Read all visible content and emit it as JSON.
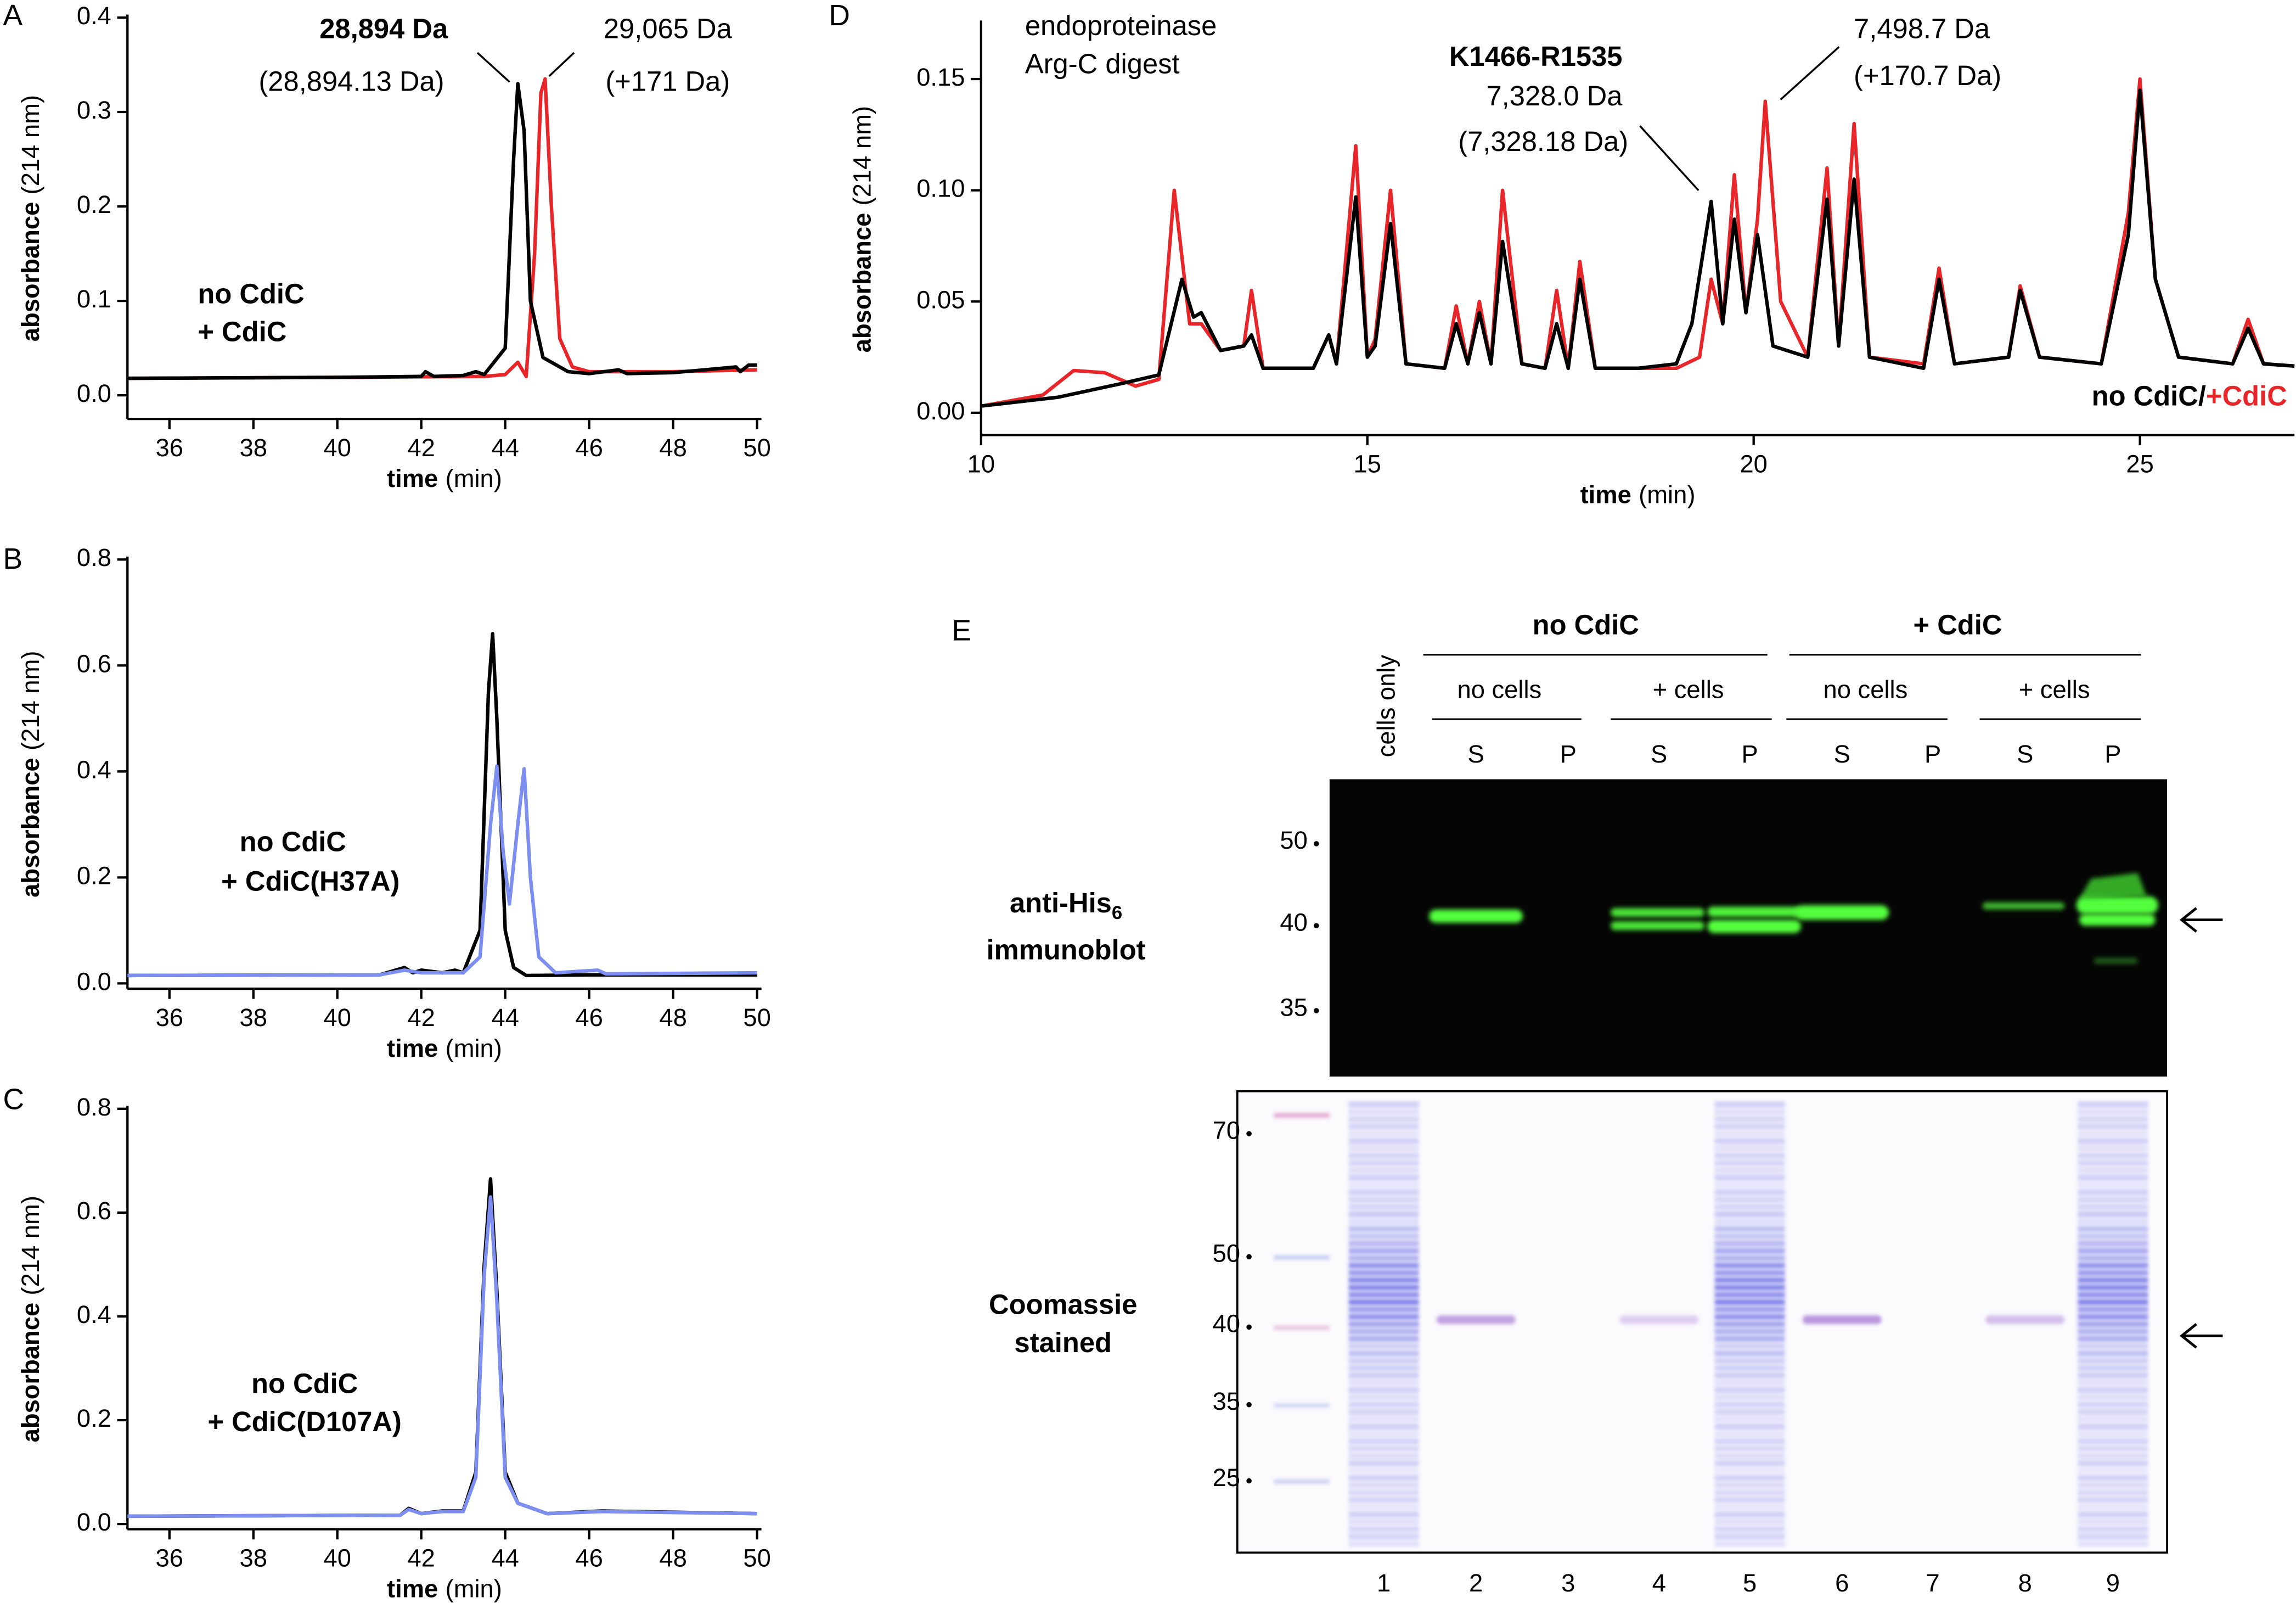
{
  "chart_data": [
    {
      "type": "line",
      "panel_label": "A",
      "ylabel": "absorbance",
      "ylabel_unit": "(214 nm)",
      "xlabel": "time",
      "xlabel_unit": "(min)",
      "xlim": [
        35,
        50
      ],
      "xticks": [
        36,
        38,
        40,
        42,
        44,
        46,
        48,
        50
      ],
      "ylim": [
        -0.025,
        0.4
      ],
      "yticks": [
        {
          "value": 0,
          "label": "0.0"
        },
        0.1,
        0.2,
        0.3,
        0.4
      ],
      "series": [
        {
          "name": "no CdiC",
          "color": "#000000",
          "x": [
            35,
            40,
            42,
            42.1,
            42.3,
            43,
            43.3,
            43.5,
            44.0,
            44.2,
            44.3,
            44.45,
            44.6,
            44.9,
            45.5,
            46,
            46.7,
            46.9,
            48,
            49.5,
            49.6,
            49.8,
            50
          ],
          "values": [
            0.018,
            0.019,
            0.02,
            0.025,
            0.02,
            0.021,
            0.025,
            0.022,
            0.05,
            0.25,
            0.33,
            0.28,
            0.1,
            0.04,
            0.025,
            0.023,
            0.027,
            0.023,
            0.024,
            0.03,
            0.025,
            0.032,
            0.032
          ]
        },
        {
          "name": "+ CdiC",
          "color": "#e8262a",
          "x": [
            35,
            40,
            43.5,
            44.0,
            44.3,
            44.5,
            44.7,
            44.85,
            44.95,
            45.1,
            45.3,
            45.6,
            46,
            48,
            50
          ],
          "values": [
            0.018,
            0.019,
            0.02,
            0.022,
            0.035,
            0.02,
            0.15,
            0.32,
            0.335,
            0.2,
            0.06,
            0.03,
            0.025,
            0.025,
            0.027
          ]
        }
      ],
      "annotations": [
        "28,894 Da",
        "(28,894.13 Da)",
        "29,065 Da",
        "(+171 Da)"
      ]
    },
    {
      "type": "line",
      "panel_label": "B",
      "ylabel": "absorbance",
      "ylabel_unit": "(214 nm)",
      "xlabel": "time",
      "xlabel_unit": "(min)",
      "xlim": [
        35,
        50
      ],
      "xticks": [
        36,
        38,
        40,
        42,
        44,
        46,
        48,
        50
      ],
      "ylim": [
        -0.01,
        0.8
      ],
      "yticks": [
        {
          "value": 0,
          "label": "0.0"
        },
        0.2,
        0.4,
        0.6,
        0.8
      ],
      "series": [
        {
          "name": "no CdiC",
          "color": "#000000",
          "x": [
            35,
            41,
            41.6,
            41.8,
            42,
            42.5,
            42.8,
            43,
            43.4,
            43.6,
            43.7,
            43.8,
            44,
            44.2,
            44.5,
            46,
            50
          ],
          "values": [
            0.015,
            0.016,
            0.03,
            0.02,
            0.025,
            0.02,
            0.025,
            0.02,
            0.1,
            0.55,
            0.66,
            0.5,
            0.1,
            0.03,
            0.015,
            0.016,
            0.016
          ]
        },
        {
          "name": "+ CdiC(H37A)",
          "color": "#7c8ff0",
          "x": [
            35,
            41,
            41.6,
            42,
            43,
            43.4,
            43.65,
            43.8,
            43.95,
            44.1,
            44.3,
            44.45,
            44.6,
            44.8,
            45.2,
            46.2,
            46.4,
            50
          ],
          "values": [
            0.015,
            0.016,
            0.025,
            0.02,
            0.02,
            0.05,
            0.3,
            0.41,
            0.25,
            0.15,
            0.3,
            0.405,
            0.2,
            0.05,
            0.02,
            0.025,
            0.018,
            0.02
          ]
        }
      ]
    },
    {
      "type": "line",
      "panel_label": "C",
      "ylabel": "absorbance",
      "ylabel_unit": "(214 nm)",
      "xlabel": "time",
      "xlabel_unit": "(min)",
      "xlim": [
        35,
        50
      ],
      "xticks": [
        36,
        38,
        40,
        42,
        44,
        46,
        48,
        50
      ],
      "ylim": [
        -0.01,
        0.8
      ],
      "yticks": [
        {
          "value": 0,
          "label": "0.0"
        },
        0.2,
        0.4,
        0.6,
        0.8
      ],
      "series": [
        {
          "name": "no CdiC",
          "color": "#000000",
          "x": [
            35,
            41.5,
            41.7,
            42,
            42.5,
            43,
            43.3,
            43.5,
            43.65,
            43.8,
            44,
            44.3,
            45,
            46.3,
            50
          ],
          "values": [
            0.015,
            0.017,
            0.03,
            0.02,
            0.025,
            0.025,
            0.1,
            0.5,
            0.665,
            0.45,
            0.1,
            0.04,
            0.02,
            0.025,
            0.02
          ]
        },
        {
          "name": "+ CdiC(D107A)",
          "color": "#7c8ff0",
          "x": [
            35,
            41.5,
            41.7,
            42,
            42.5,
            43,
            43.3,
            43.5,
            43.65,
            43.8,
            44,
            44.3,
            45,
            46.3,
            50
          ],
          "values": [
            0.015,
            0.017,
            0.028,
            0.02,
            0.024,
            0.024,
            0.09,
            0.48,
            0.63,
            0.43,
            0.09,
            0.04,
            0.02,
            0.024,
            0.02
          ]
        }
      ]
    },
    {
      "type": "line",
      "panel_label": "D",
      "ylabel": "absorbance",
      "ylabel_unit": "(214 nm)",
      "xlabel": "time",
      "xlabel_unit": "(min)",
      "xlim": [
        10,
        27
      ],
      "xticks": [
        10,
        15,
        20,
        25
      ],
      "ylim": [
        -0.01,
        0.175
      ],
      "yticks": [
        {
          "value": 0,
          "label": "0.00"
        },
        0.05,
        {
          "value": 0.1,
          "label": "0.10"
        },
        0.15
      ],
      "series": [
        {
          "name": "no CdiC",
          "color": "#000000",
          "x": [
            10,
            11,
            11.8,
            12.3,
            12.6,
            12.75,
            12.85,
            13.1,
            13.4,
            13.5,
            13.65,
            14.3,
            14.5,
            14.6,
            14.85,
            15.0,
            15.1,
            15.3,
            15.5,
            16.0,
            16.15,
            16.3,
            16.45,
            16.6,
            16.75,
            17.0,
            17.3,
            17.45,
            17.6,
            17.75,
            17.95,
            18.5,
            19.0,
            19.2,
            19.45,
            19.6,
            19.75,
            19.9,
            20.05,
            20.25,
            20.7,
            20.95,
            21.1,
            21.3,
            21.5,
            22.2,
            22.4,
            22.6,
            23.3,
            23.45,
            23.7,
            24.5,
            24.85,
            25.0,
            25.2,
            25.5,
            26.2,
            26.4,
            26.6,
            27
          ],
          "values": [
            0.003,
            0.007,
            0.013,
            0.017,
            0.06,
            0.043,
            0.045,
            0.028,
            0.03,
            0.035,
            0.02,
            0.02,
            0.035,
            0.022,
            0.097,
            0.025,
            0.03,
            0.085,
            0.022,
            0.02,
            0.04,
            0.022,
            0.045,
            0.022,
            0.077,
            0.022,
            0.02,
            0.04,
            0.02,
            0.06,
            0.02,
            0.02,
            0.022,
            0.04,
            0.095,
            0.04,
            0.087,
            0.045,
            0.08,
            0.03,
            0.025,
            0.096,
            0.03,
            0.105,
            0.025,
            0.02,
            0.06,
            0.022,
            0.025,
            0.055,
            0.025,
            0.022,
            0.08,
            0.145,
            0.06,
            0.025,
            0.022,
            0.038,
            0.022,
            0.021
          ]
        },
        {
          "name": "+CdiC",
          "color": "#e8262a",
          "x": [
            10,
            10.8,
            11.2,
            11.6,
            12.0,
            12.3,
            12.5,
            12.7,
            12.85,
            13.1,
            13.4,
            13.5,
            13.65,
            14.3,
            14.5,
            14.6,
            14.85,
            15.0,
            15.1,
            15.3,
            15.5,
            16.0,
            16.15,
            16.3,
            16.45,
            16.6,
            16.75,
            17.0,
            17.3,
            17.45,
            17.6,
            17.75,
            17.95,
            18.5,
            19.0,
            19.3,
            19.45,
            19.6,
            19.75,
            19.9,
            20.05,
            20.15,
            20.35,
            20.7,
            20.95,
            21.1,
            21.3,
            21.5,
            22.2,
            22.4,
            22.6,
            23.3,
            23.45,
            23.7,
            24.5,
            24.85,
            25.0,
            25.2,
            25.5,
            26.2,
            26.4,
            26.6,
            27
          ],
          "values": [
            0.003,
            0.008,
            0.019,
            0.018,
            0.012,
            0.015,
            0.1,
            0.04,
            0.04,
            0.028,
            0.03,
            0.055,
            0.02,
            0.02,
            0.035,
            0.022,
            0.12,
            0.025,
            0.033,
            0.1,
            0.022,
            0.02,
            0.048,
            0.022,
            0.05,
            0.022,
            0.1,
            0.022,
            0.02,
            0.055,
            0.02,
            0.068,
            0.02,
            0.02,
            0.02,
            0.025,
            0.06,
            0.04,
            0.107,
            0.045,
            0.087,
            0.14,
            0.05,
            0.025,
            0.11,
            0.03,
            0.13,
            0.025,
            0.022,
            0.065,
            0.022,
            0.025,
            0.057,
            0.025,
            0.022,
            0.09,
            0.15,
            0.06,
            0.025,
            0.022,
            0.042,
            0.022,
            0.021
          ]
        }
      ],
      "legend_separator": "/",
      "annotations": [
        "endoproteinase",
        "Arg-C digest",
        "K1466-R1535",
        "7,328.0 Da",
        "(7,328.18 Da)",
        "7,498.7 Da",
        "(+170.7 Da)"
      ]
    }
  ],
  "blot": {
    "panel_label": "E",
    "groups": [
      "no CdiC",
      "+ CdiC"
    ],
    "conditions": [
      "no cells",
      "+ cells",
      "no cells",
      "+ cells"
    ],
    "fractions": [
      "S",
      "P",
      "S",
      "P",
      "S",
      "P",
      "S",
      "P"
    ],
    "control": "cells only",
    "lanes": [
      1,
      2,
      3,
      4,
      5,
      6,
      7,
      8,
      9
    ],
    "immunoblot": {
      "label": "anti-His",
      "subscript": "6",
      "label_line2": "immunoblot",
      "markers": [
        50,
        40,
        35
      ]
    },
    "stain": {
      "label": "Coomassie",
      "label_line2": "stained",
      "markers": [
        70,
        50,
        40,
        35,
        25
      ]
    }
  }
}
